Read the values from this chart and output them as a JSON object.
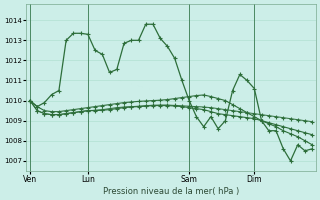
{
  "title": "Pression niveau de la mer( hPa )",
  "bg_color": "#cceee8",
  "grid_color": "#aaddcc",
  "line_color": "#2d6e3a",
  "ylim": [
    1006.5,
    1014.8
  ],
  "yticks": [
    1007,
    1008,
    1009,
    1010,
    1011,
    1012,
    1013,
    1014
  ],
  "xtick_labels": [
    "Ven",
    "Lun",
    "Sam",
    "Dim"
  ],
  "xtick_positions": [
    0,
    8,
    22,
    31
  ],
  "n_points": 40,
  "series1": [
    1010.0,
    1009.7,
    1009.9,
    1010.3,
    1010.5,
    1013.0,
    1013.35,
    1013.35,
    1013.3,
    1012.5,
    1012.3,
    1011.4,
    1011.55,
    1012.85,
    1013.0,
    1013.0,
    1013.8,
    1013.8,
    1013.1,
    1012.7,
    1012.1,
    1011.0,
    1010.0,
    1009.2,
    1008.7,
    1009.2,
    1008.6,
    1009.0,
    1010.5,
    1011.3,
    1011.0,
    1010.6,
    1009.0,
    1008.5,
    1008.5,
    1007.6,
    1007.0,
    1007.8,
    1007.5,
    1007.6
  ],
  "series2": [
    1010.0,
    1009.7,
    1009.5,
    1009.45,
    1009.45,
    1009.5,
    1009.55,
    1009.6,
    1009.65,
    1009.7,
    1009.75,
    1009.8,
    1009.85,
    1009.9,
    1009.93,
    1009.96,
    1009.98,
    1010.0,
    1010.02,
    1010.05,
    1010.1,
    1010.15,
    1010.2,
    1010.25,
    1010.28,
    1010.2,
    1010.1,
    1010.0,
    1009.8,
    1009.6,
    1009.4,
    1009.2,
    1009.0,
    1008.85,
    1008.7,
    1008.5,
    1008.35,
    1008.2,
    1008.0,
    1007.8
  ],
  "series3": [
    1010.0,
    1009.5,
    1009.35,
    1009.3,
    1009.3,
    1009.35,
    1009.4,
    1009.45,
    1009.5,
    1009.5,
    1009.52,
    1009.55,
    1009.6,
    1009.65,
    1009.68,
    1009.7,
    1009.72,
    1009.75,
    1009.75,
    1009.75,
    1009.73,
    1009.7,
    1009.65,
    1009.6,
    1009.55,
    1009.45,
    1009.35,
    1009.3,
    1009.25,
    1009.2,
    1009.15,
    1009.1,
    1009.0,
    1008.9,
    1008.8,
    1008.7,
    1008.6,
    1008.5,
    1008.4,
    1008.3
  ],
  "series4": [
    1010.0,
    1009.5,
    1009.35,
    1009.3,
    1009.3,
    1009.35,
    1009.4,
    1009.45,
    1009.5,
    1009.52,
    1009.55,
    1009.6,
    1009.65,
    1009.68,
    1009.7,
    1009.72,
    1009.75,
    1009.77,
    1009.78,
    1009.78,
    1009.76,
    1009.74,
    1009.72,
    1009.7,
    1009.68,
    1009.65,
    1009.6,
    1009.55,
    1009.5,
    1009.45,
    1009.4,
    1009.35,
    1009.3,
    1009.25,
    1009.2,
    1009.15,
    1009.1,
    1009.05,
    1009.0,
    1008.95
  ]
}
